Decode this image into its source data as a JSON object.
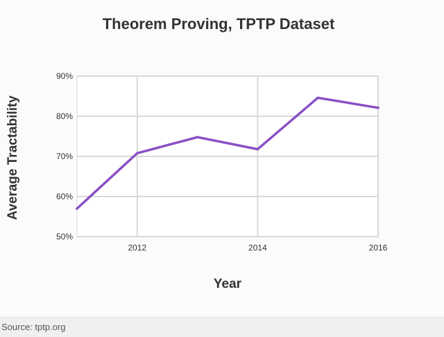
{
  "chart_data": {
    "type": "line",
    "title": "Theorem Proving, TPTP Dataset",
    "xlabel": "Year",
    "ylabel": "Average Tractability",
    "x_ticks": [
      "2012",
      "2014",
      "2016"
    ],
    "y_ticks": [
      "50%",
      "60%",
      "70%",
      "80%",
      "90%"
    ],
    "xlim": [
      2011,
      2016
    ],
    "ylim": [
      50,
      90
    ],
    "grid": true,
    "series": [
      {
        "x": [
          2011,
          2012,
          2013,
          2014,
          2015,
          2016
        ],
        "y": [
          57,
          70.8,
          74.8,
          71.8,
          84.6,
          82.1
        ]
      }
    ],
    "colors": {
      "line": "#8a4fc6",
      "grid": "#d8d8d8"
    }
  },
  "footer": {
    "source": "Source: tptp.org"
  }
}
